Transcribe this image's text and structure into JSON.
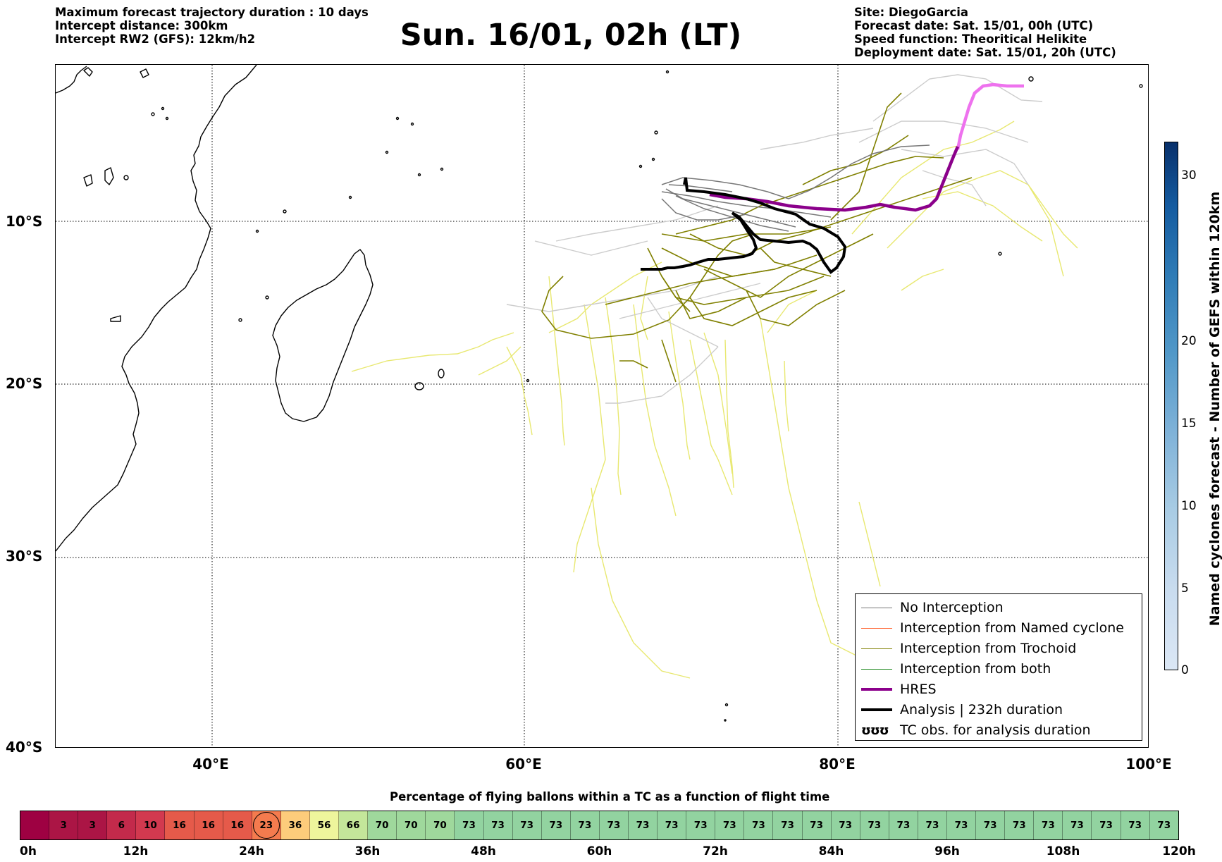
{
  "header_left": {
    "line1": "Maximum forecast trajectory duration : 10 days",
    "line2": "Intercept distance: 300km",
    "line3": "Intercept RW2 (GFS):  12km/h2"
  },
  "title": "Sun. 16/01, 02h (LT)",
  "header_right": {
    "line1": "Site: DiegoGarcia",
    "line2": "Forecast date: Sat. 15/01, 00h (UTC)",
    "line3": "Speed function: Theoritical Helikite",
    "line4": "Deployment date: Sat. 15/01, 20h (UTC)"
  },
  "map": {
    "lon_range": [
      30,
      100
    ],
    "lat_range": [
      -40,
      0
    ],
    "lat_labels": [
      "10°S",
      "20°S",
      "30°S",
      "40°S"
    ],
    "lon_labels": [
      "40°E",
      "60°E",
      "80°E",
      "100°E"
    ],
    "grid": "dotted",
    "colors": {
      "no_interception": "#777777",
      "no_interception_light": "#cccccc",
      "named_cyclone": "#ff6633",
      "trochoid": "#808000",
      "trochoid_light": "#e8e870",
      "both": "#228b22",
      "hres": "#8b008b",
      "hres_light": "#ee72ee",
      "analysis": "#000000"
    }
  },
  "legend": {
    "items": [
      {
        "label": "No Interception",
        "color": "#777777",
        "width": 1.5
      },
      {
        "label": "Interception from Named cyclone",
        "color": "#ff6633",
        "width": 1.5
      },
      {
        "label": "Interception from Trochoid",
        "color": "#808000",
        "width": 1.5
      },
      {
        "label": "Interception from both",
        "color": "#228b22",
        "width": 1.5
      },
      {
        "label": "HRES",
        "color": "#8b008b",
        "width": 4
      },
      {
        "label": "Analysis | 232h duration",
        "color": "#000000",
        "width": 4
      }
    ],
    "tc_symbol": "ʊʊʊ",
    "tc_label": "TC obs. for analysis duration"
  },
  "colorbar": {
    "label": "Named cyclones forecast - Number of GEFS within 120km",
    "ticks": [
      "0",
      "5",
      "10",
      "15",
      "20",
      "30"
    ],
    "range": [
      0,
      32
    ]
  },
  "percent_bar": {
    "title": "Percentage of flying ballons within a TC as a function of flight time",
    "values": [
      "",
      "3",
      "3",
      "6",
      "10",
      "16",
      "16",
      "16",
      "23",
      "36",
      "56",
      "66",
      "70",
      "70",
      "70",
      "73",
      "73",
      "73",
      "73",
      "73",
      "73",
      "73",
      "73",
      "73",
      "73",
      "73",
      "73",
      "73",
      "73",
      "73",
      "73",
      "73",
      "73",
      "73",
      "73",
      "73",
      "73",
      "73",
      "73",
      "73"
    ],
    "colors": [
      "#9e0142",
      "#ab1545",
      "#ab1545",
      "#c32a4b",
      "#d2394f",
      "#e55a4a",
      "#e55a4a",
      "#e55a4a",
      "#f47b4e",
      "#fdcc7b",
      "#eef59c",
      "#c4e69a",
      "#9fd89c",
      "#9fd89c",
      "#9fd89c",
      "#92d3a0",
      "#92d3a0",
      "#92d3a0",
      "#92d3a0",
      "#92d3a0",
      "#92d3a0",
      "#92d3a0",
      "#92d3a0",
      "#92d3a0",
      "#92d3a0",
      "#92d3a0",
      "#92d3a0",
      "#92d3a0",
      "#92d3a0",
      "#92d3a0",
      "#92d3a0",
      "#92d3a0",
      "#92d3a0",
      "#92d3a0",
      "#92d3a0",
      "#92d3a0",
      "#92d3a0",
      "#92d3a0",
      "#92d3a0",
      "#92d3a0"
    ],
    "highlighted_value": "23",
    "time_labels": [
      "0h",
      "12h",
      "24h",
      "36h",
      "48h",
      "60h",
      "72h",
      "84h",
      "96h",
      "108h",
      "120h"
    ]
  }
}
